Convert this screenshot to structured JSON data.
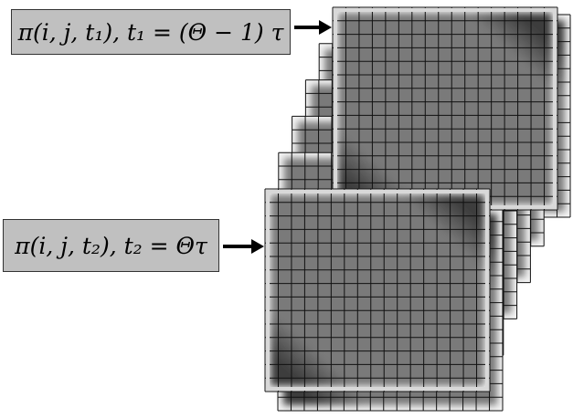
{
  "labels": {
    "frame_t1": "π(i, j, t₁), t₁ = (Θ − 1) τ",
    "frame_t2": "π(i, j, t₂), t₂ = Θτ"
  },
  "frames": {
    "layer_count": 6,
    "grid_columns": 17,
    "grid_rows": 15
  },
  "colors": {
    "cell_fill": "#7a7a7a",
    "band_dark": "#3c3c3c",
    "frame_border": "#d8d8d8",
    "label_bg": "#c0c0c0"
  }
}
